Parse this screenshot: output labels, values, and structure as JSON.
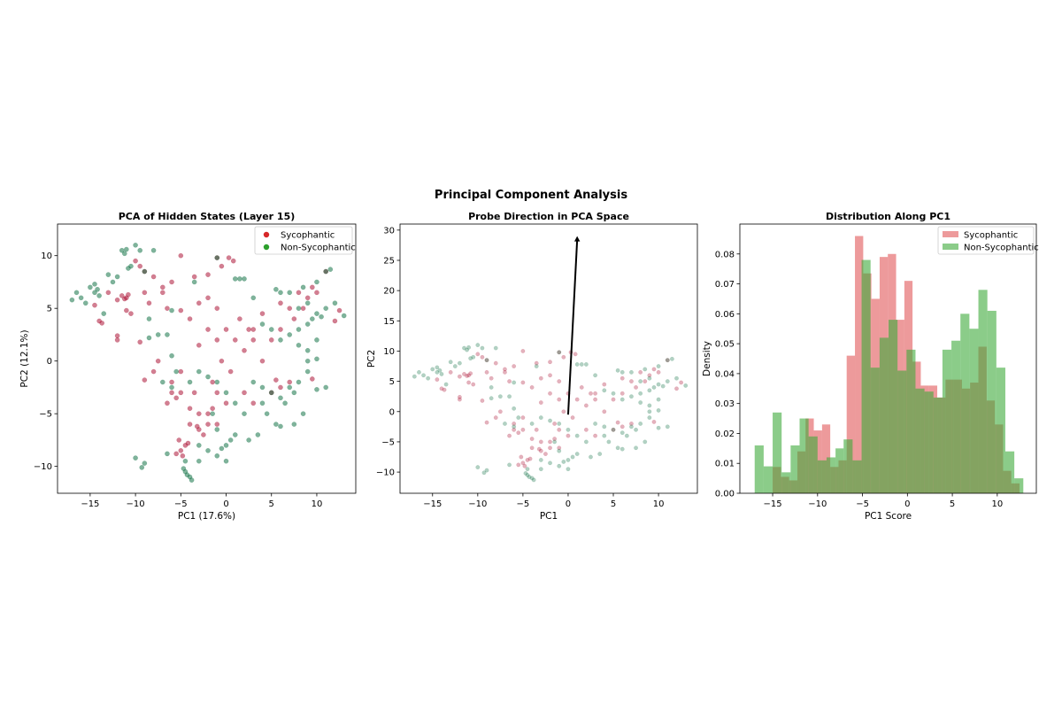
{
  "figure": {
    "title": "Principal Component Analysis"
  },
  "colors": {
    "sycophantic_point": "#a50026",
    "non_sycophantic_point": "#006837",
    "sycophantic_legend": "#d62728",
    "non_sycophantic_legend": "#2ca02c",
    "sycophantic_hist": "#e15759",
    "non_sycophantic_hist": "#3daa3a",
    "arrow": "#000000"
  },
  "chart_data": [
    {
      "type": "scatter",
      "title": "PCA of Hidden States (Layer 15)",
      "xlabel": "PC1 (17.6%)",
      "ylabel": "PC2 (12.1%)",
      "xlim": [
        -18.6,
        14.3
      ],
      "ylim": [
        -12.55,
        13.0
      ],
      "xticks": [
        -15,
        -10,
        -5,
        0,
        5,
        10
      ],
      "yticks": [
        -10,
        -5,
        0,
        5,
        10
      ],
      "grid": false,
      "legend_position": "top-right",
      "series": [
        {
          "name": "Sycophantic",
          "points": [
            [
              -11.5,
              6.2
            ],
            [
              -11,
              6
            ],
            [
              -10.8,
              6.3
            ],
            [
              -11.2,
              5.9
            ],
            [
              -12,
              5.8
            ],
            [
              -14,
              3.8
            ],
            [
              -13.7,
              3.6
            ],
            [
              -10,
              9.5
            ],
            [
              -9.5,
              9
            ],
            [
              -9,
              8.5
            ],
            [
              -8,
              8
            ],
            [
              -7,
              7
            ],
            [
              -6,
              7.5
            ],
            [
              -5,
              10
            ],
            [
              -3.5,
              8
            ],
            [
              -2,
              8.2
            ],
            [
              -1,
              9.8
            ],
            [
              0.3,
              9.8
            ],
            [
              0.8,
              9.5
            ],
            [
              -0.5,
              9
            ],
            [
              -10.5,
              4.5
            ],
            [
              -11,
              4.8
            ],
            [
              -9,
              6.5
            ],
            [
              -8.5,
              5.5
            ],
            [
              -7,
              6.5
            ],
            [
              -6.5,
              5
            ],
            [
              -5,
              4.8
            ],
            [
              -4,
              4
            ],
            [
              -3,
              5.5
            ],
            [
              -2,
              6
            ],
            [
              -1,
              5
            ],
            [
              -12,
              2.4
            ],
            [
              -12,
              2
            ],
            [
              -9.5,
              1.8
            ],
            [
              -9,
              -1.8
            ],
            [
              -7.5,
              0
            ],
            [
              -8,
              -1
            ],
            [
              -14.5,
              5.3
            ],
            [
              -13,
              6.5
            ],
            [
              0,
              3
            ],
            [
              1,
              2
            ],
            [
              2,
              1
            ],
            [
              -1,
              2
            ],
            [
              -2,
              3
            ],
            [
              -0.5,
              0
            ],
            [
              0.5,
              -1
            ],
            [
              1.5,
              4
            ],
            [
              2.5,
              3
            ],
            [
              3,
              2
            ],
            [
              4,
              0
            ],
            [
              5,
              2
            ],
            [
              6,
              3
            ],
            [
              -3,
              1.5
            ],
            [
              -1.5,
              -2
            ],
            [
              2,
              -3
            ],
            [
              3,
              -4
            ],
            [
              5,
              -3
            ],
            [
              6,
              -2.5
            ],
            [
              7,
              -2
            ],
            [
              5.5,
              -1.8
            ],
            [
              9.5,
              -1.7
            ],
            [
              7,
              5
            ],
            [
              8,
              6.5
            ],
            [
              9,
              6
            ],
            [
              10,
              6.5
            ],
            [
              8.5,
              5
            ],
            [
              9.5,
              7
            ],
            [
              7.5,
              4
            ],
            [
              11,
              8.5
            ],
            [
              12,
              3.8
            ],
            [
              12.5,
              4.8
            ],
            [
              6,
              5.5
            ],
            [
              4,
              4.5
            ],
            [
              3,
              3
            ],
            [
              -6,
              -3
            ],
            [
              -5.5,
              -3.5
            ],
            [
              -5,
              -3
            ],
            [
              -4,
              -4.5
            ],
            [
              -3,
              -5
            ],
            [
              -2,
              -5
            ],
            [
              -1.5,
              -4.5
            ],
            [
              -3,
              -6.5
            ],
            [
              -2.5,
              -7
            ],
            [
              -3.2,
              -6.2
            ],
            [
              -4.5,
              -8
            ],
            [
              -5,
              -8.5
            ],
            [
              -4.8,
              -9
            ],
            [
              -5.5,
              -8.8
            ],
            [
              -4.2,
              -7.8
            ],
            [
              -5.2,
              -7.5
            ],
            [
              -6,
              -2
            ],
            [
              -5,
              -1
            ],
            [
              -6.5,
              -4
            ],
            [
              -1,
              -6
            ],
            [
              0,
              -4
            ],
            [
              -2,
              -6
            ],
            [
              -1,
              -3
            ],
            [
              -4,
              -6
            ],
            [
              -3.5,
              -3
            ]
          ]
        },
        {
          "name": "Non-Sycophantic",
          "points": [
            [
              -16.5,
              6.5
            ],
            [
              -16,
              6
            ],
            [
              -17,
              5.8
            ],
            [
              -15.5,
              5.5
            ],
            [
              -14.5,
              6.5
            ],
            [
              -14.2,
              6.8
            ],
            [
              -14,
              6.2
            ],
            [
              -14.5,
              7.3
            ],
            [
              -15,
              7
            ],
            [
              -13,
              8.2
            ],
            [
              -12,
              8
            ],
            [
              -11.5,
              10.5
            ],
            [
              -11.2,
              10.2
            ],
            [
              -11,
              10.6
            ],
            [
              -10.5,
              9
            ],
            [
              -10.8,
              8.8
            ],
            [
              -10,
              11
            ],
            [
              -9.5,
              10.5
            ],
            [
              -8,
              10.5
            ],
            [
              -12.5,
              7.5
            ],
            [
              -13.5,
              4.5
            ],
            [
              -9,
              8.5
            ],
            [
              -8.5,
              4
            ],
            [
              -6,
              4.8
            ],
            [
              -3.5,
              7.5
            ],
            [
              -1,
              9.8
            ],
            [
              1,
              7.8
            ],
            [
              1.5,
              7.8
            ],
            [
              -10,
              -9.2
            ],
            [
              -9,
              -9.7
            ],
            [
              -9.3,
              -10.1
            ],
            [
              -7.5,
              2.5
            ],
            [
              -8.5,
              2.2
            ],
            [
              -6.5,
              2.5
            ],
            [
              -7,
              -2
            ],
            [
              -6,
              0.5
            ],
            [
              8,
              5
            ],
            [
              9,
              5.5
            ],
            [
              10,
              4.5
            ],
            [
              9.5,
              4
            ],
            [
              10.5,
              4.2
            ],
            [
              11,
              5
            ],
            [
              12,
              5.5
            ],
            [
              13,
              4.3
            ],
            [
              8.5,
              7
            ],
            [
              10,
              7.5
            ],
            [
              11,
              8.5
            ],
            [
              11.5,
              8.7
            ],
            [
              7,
              6.5
            ],
            [
              6,
              6.5
            ],
            [
              9,
              3.5
            ],
            [
              8,
              3
            ],
            [
              7,
              2.5
            ],
            [
              6,
              2
            ],
            [
              5,
              3
            ],
            [
              4,
              3.5
            ],
            [
              3,
              6
            ],
            [
              2,
              7.8
            ],
            [
              10,
              2
            ],
            [
              9,
              1
            ],
            [
              8,
              1.5
            ],
            [
              5.5,
              6.8
            ],
            [
              5,
              -3
            ],
            [
              6,
              -3.5
            ],
            [
              6.5,
              -4
            ],
            [
              7,
              -2.5
            ],
            [
              7.5,
              -3
            ],
            [
              8,
              -2
            ],
            [
              9,
              -1
            ],
            [
              10,
              -2.7
            ],
            [
              11,
              -2.5
            ],
            [
              4.5,
              -5
            ],
            [
              5.5,
              -6
            ],
            [
              6,
              -6.2
            ],
            [
              7.5,
              -6
            ],
            [
              8.5,
              -5
            ],
            [
              3,
              -2
            ],
            [
              4,
              -4
            ],
            [
              3.5,
              -7
            ],
            [
              2.5,
              -7.5
            ],
            [
              4,
              -2.5
            ],
            [
              10,
              0.2
            ],
            [
              9,
              0
            ],
            [
              -3,
              -1
            ],
            [
              -2,
              -1.5
            ],
            [
              -1,
              -2
            ],
            [
              -4,
              -2
            ],
            [
              -5.5,
              -1
            ],
            [
              -6,
              -2.5
            ],
            [
              -1.5,
              -5
            ],
            [
              -1,
              -6.5
            ],
            [
              0,
              -8
            ],
            [
              -0.5,
              -8.3
            ],
            [
              1,
              -7
            ],
            [
              0.5,
              -7.5
            ],
            [
              -2,
              -8.5
            ],
            [
              -3,
              -8
            ],
            [
              -1,
              -9
            ],
            [
              0,
              -9.5
            ],
            [
              -4.5,
              -10.5
            ],
            [
              -4.3,
              -10.8
            ],
            [
              -4.7,
              -10.2
            ],
            [
              -4,
              -11
            ],
            [
              -4.5,
              -9.5
            ],
            [
              -3.8,
              -11.3
            ],
            [
              -3,
              -9.5
            ],
            [
              -6.5,
              -8.8
            ],
            [
              2,
              -5
            ],
            [
              1,
              -4
            ],
            [
              0,
              -3
            ]
          ]
        }
      ]
    },
    {
      "type": "scatter",
      "title": "Probe Direction in PCA Space",
      "xlabel": "PC1",
      "ylabel": "PC2",
      "xlim": [
        -18.6,
        14.3
      ],
      "ylim": [
        -13.5,
        31.0
      ],
      "xticks": [
        -15,
        -10,
        -5,
        0,
        5,
        10
      ],
      "yticks": [
        -10,
        -5,
        0,
        5,
        10,
        15,
        20,
        25,
        30
      ],
      "grid": false,
      "arrow": {
        "from": [
          0,
          -0.5
        ],
        "to": [
          1,
          29
        ]
      },
      "series_source": "same points as PCA of Hidden States (Layer 15)"
    },
    {
      "type": "histogram",
      "title": "Distribution Along PC1",
      "xlabel": "PC1 Score",
      "ylabel": "Density",
      "xlim": [
        -18.65,
        14.35
      ],
      "ylim": [
        0,
        0.09
      ],
      "xticks": [
        -15,
        -10,
        -5,
        0,
        5,
        10
      ],
      "yticks": [
        "0.00",
        "0.01",
        "0.02",
        "0.03",
        "0.04",
        "0.05",
        "0.06",
        "0.07",
        "0.08"
      ],
      "grid": false,
      "legend_position": "top-right",
      "series": [
        {
          "name": "Sycophantic",
          "bin_edges": [
            -15.0,
            -14.08,
            -13.17,
            -12.25,
            -11.34,
            -10.42,
            -9.5,
            -8.59,
            -7.67,
            -6.76,
            -5.84,
            -4.92,
            -4.01,
            -3.09,
            -2.18,
            -1.26,
            -0.34,
            0.57,
            1.49,
            2.4,
            3.32,
            4.24,
            5.15,
            6.07,
            6.98,
            7.9,
            8.82,
            9.73,
            10.65,
            11.56,
            12.48
          ],
          "values": [
            0.0088,
            0.0055,
            0.0043,
            0.014,
            0.025,
            0.021,
            0.023,
            0.0088,
            0.011,
            0.046,
            0.086,
            0.0735,
            0.065,
            0.079,
            0.08,
            0.058,
            0.071,
            0.044,
            0.036,
            0.036,
            0.032,
            0.038,
            0.038,
            0.035,
            0.037,
            0.049,
            0.031,
            0.023,
            0.0075,
            0.0033
          ]
        },
        {
          "name": "Non-Sycophantic",
          "bin_edges": [
            -17.0,
            -16.0,
            -15.0,
            -14.0,
            -13.0,
            -12.0,
            -11.0,
            -10.0,
            -9.0,
            -8.0,
            -7.1,
            -6.1,
            -5.1,
            -4.1,
            -3.1,
            -2.1,
            -1.1,
            -0.1,
            0.9,
            1.9,
            2.9,
            3.9,
            4.9,
            5.9,
            6.9,
            7.9,
            8.9,
            9.9,
            10.9,
            11.9,
            12.9
          ],
          "values": [
            0.016,
            0.009,
            0.027,
            0.007,
            0.016,
            0.025,
            0.019,
            0.011,
            0.012,
            0.015,
            0.018,
            0.011,
            0.078,
            0.042,
            0.052,
            0.058,
            0.041,
            0.048,
            0.035,
            0.034,
            0.032,
            0.048,
            0.051,
            0.06,
            0.055,
            0.068,
            0.061,
            0.042,
            0.014,
            0.005
          ]
        }
      ]
    }
  ]
}
